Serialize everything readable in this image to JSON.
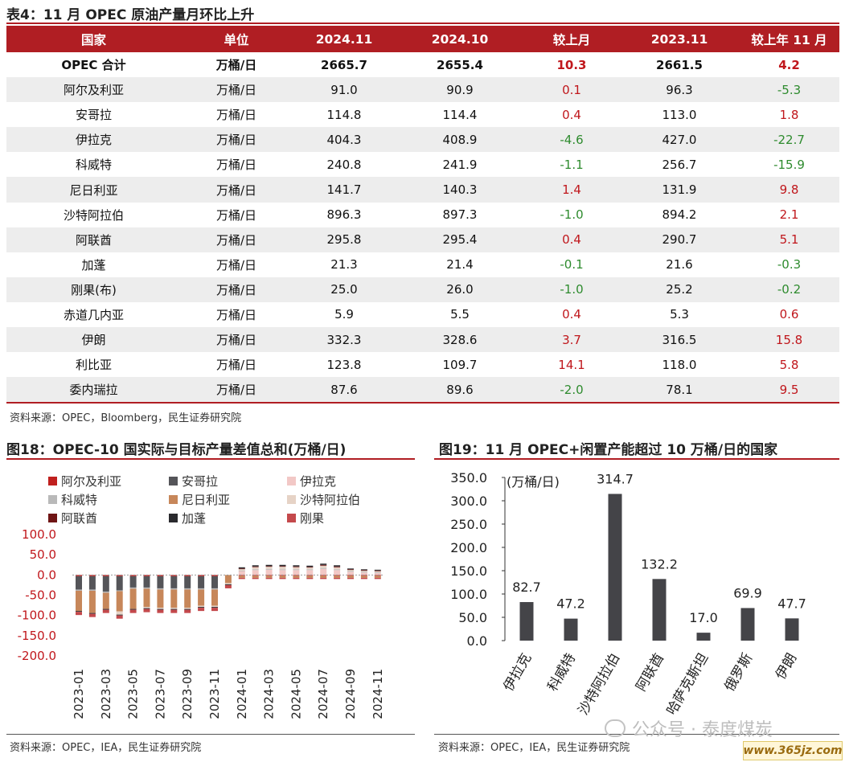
{
  "table": {
    "title": "表4：11 月 OPEC 原油产量月环比上升",
    "headers": [
      "国家",
      "单位",
      "2024.11",
      "2024.10",
      "较上月",
      "2023.11",
      "较上年 11 月"
    ],
    "rows": [
      {
        "country": "OPEC 合计",
        "unit": "万桶/日",
        "v2411": "2665.7",
        "v2410": "2655.4",
        "mom": "10.3",
        "v2311": "2661.5",
        "yoy": "4.2"
      },
      {
        "country": "阿尔及利亚",
        "unit": "万桶/日",
        "v2411": "91.0",
        "v2410": "90.9",
        "mom": "0.1",
        "v2311": "96.3",
        "yoy": "-5.3"
      },
      {
        "country": "安哥拉",
        "unit": "万桶/日",
        "v2411": "114.8",
        "v2410": "114.4",
        "mom": "0.4",
        "v2311": "113.0",
        "yoy": "1.8"
      },
      {
        "country": "伊拉克",
        "unit": "万桶/日",
        "v2411": "404.3",
        "v2410": "408.9",
        "mom": "-4.6",
        "v2311": "427.0",
        "yoy": "-22.7"
      },
      {
        "country": "科威特",
        "unit": "万桶/日",
        "v2411": "240.8",
        "v2410": "241.9",
        "mom": "-1.1",
        "v2311": "256.7",
        "yoy": "-15.9"
      },
      {
        "country": "尼日利亚",
        "unit": "万桶/日",
        "v2411": "141.7",
        "v2410": "140.3",
        "mom": "1.4",
        "v2311": "131.9",
        "yoy": "9.8"
      },
      {
        "country": "沙特阿拉伯",
        "unit": "万桶/日",
        "v2411": "896.3",
        "v2410": "897.3",
        "mom": "-1.0",
        "v2311": "894.2",
        "yoy": "2.1"
      },
      {
        "country": "阿联酋",
        "unit": "万桶/日",
        "v2411": "295.8",
        "v2410": "295.4",
        "mom": "0.4",
        "v2311": "290.7",
        "yoy": "5.1"
      },
      {
        "country": "加蓬",
        "unit": "万桶/日",
        "v2411": "21.3",
        "v2410": "21.4",
        "mom": "-0.1",
        "v2311": "21.6",
        "yoy": "-0.3"
      },
      {
        "country": "刚果(布)",
        "unit": "万桶/日",
        "v2411": "25.0",
        "v2410": "26.0",
        "mom": "-1.0",
        "v2311": "25.2",
        "yoy": "-0.2"
      },
      {
        "country": "赤道几内亚",
        "unit": "万桶/日",
        "v2411": "5.9",
        "v2410": "5.5",
        "mom": "0.4",
        "v2311": "5.3",
        "yoy": "0.6"
      },
      {
        "country": "伊朗",
        "unit": "万桶/日",
        "v2411": "332.3",
        "v2410": "328.6",
        "mom": "3.7",
        "v2311": "316.5",
        "yoy": "15.8"
      },
      {
        "country": "利比亚",
        "unit": "万桶/日",
        "v2411": "123.8",
        "v2410": "109.7",
        "mom": "14.1",
        "v2311": "118.0",
        "yoy": "5.8"
      },
      {
        "country": "委内瑞拉",
        "unit": "万桶/日",
        "v2411": "87.6",
        "v2410": "89.6",
        "mom": "-2.0",
        "v2311": "78.1",
        "yoy": "9.5"
      }
    ],
    "source": "资料来源：OPEC，Bloomberg，民生证券研究院",
    "colors": {
      "header_bg": "#b01e23",
      "positive": "#c0171c",
      "negative": "#2e8b2e"
    }
  },
  "figure18": {
    "title": "图18：OPEC-10 国实际与目标产量差值总和(万桶/日)",
    "source": "资料来源：OPEC，IEA，民生证券研究院"
  },
  "figure19": {
    "title": "图19：11 月 OPEC+闲置产能超过 10 万桶/日的国家",
    "source": "资料来源：OPEC，IEA，民生证券研究院"
  },
  "watermark": {
    "text": "公众号 · 泰度煤炭",
    "site": "www.365jz.com"
  },
  "chart_data": [
    {
      "type": "bar",
      "stacked": true,
      "categories": [
        "2023-01",
        "2023-02",
        "2023-03",
        "2023-04",
        "2023-05",
        "2023-06",
        "2023-07",
        "2023-08",
        "2023-09",
        "2023-10",
        "2023-11",
        "2023-12",
        "2024-01",
        "2024-02",
        "2024-03",
        "2024-04",
        "2024-05",
        "2024-06",
        "2024-07",
        "2024-08",
        "2024-09",
        "2024-10",
        "2024-11"
      ],
      "xtick_labels": [
        "2023-01",
        "2023-03",
        "2023-05",
        "2023-07",
        "2023-09",
        "2023-11",
        "2024-01",
        "2024-03",
        "2024-05",
        "2024-07",
        "2024-09",
        "2024-11"
      ],
      "ylim": [
        -200,
        100
      ],
      "yticks": [
        "100.0",
        "50.0",
        "0.0",
        "-50.0",
        "-100.0",
        "-150.0",
        "-200.0"
      ],
      "legend_position": "top",
      "series": [
        {
          "name": "阿尔及利亚",
          "color": "#c0201e",
          "values": [
            -3,
            -3,
            -3,
            -3,
            -3,
            -3,
            -3,
            -3,
            -3,
            -3,
            -3,
            0,
            -2,
            -2,
            -2,
            -2,
            -2,
            -2,
            -2,
            -2,
            -2,
            -2,
            -2
          ]
        },
        {
          "name": "安哥拉",
          "color": "#555559",
          "values": [
            -33,
            -33,
            -38,
            -35,
            -28,
            -28,
            -30,
            -30,
            -30,
            -30,
            -30,
            0,
            0,
            0,
            0,
            0,
            0,
            0,
            0,
            0,
            0,
            0,
            0
          ]
        },
        {
          "name": "伊拉克",
          "color": "#f2c8c6",
          "values": [
            0,
            0,
            0,
            0,
            0,
            0,
            0,
            0,
            0,
            0,
            0,
            0,
            10,
            12,
            13,
            12,
            12,
            12,
            15,
            12,
            8,
            6,
            5
          ]
        },
        {
          "name": "科威特",
          "color": "#b9b9b9",
          "values": [
            -3,
            -3,
            -3,
            -2,
            -3,
            -3,
            -3,
            -3,
            -3,
            -3,
            -3,
            0,
            1,
            2,
            2,
            2,
            2,
            2,
            2,
            2,
            2,
            2,
            2
          ]
        },
        {
          "name": "尼日利亚",
          "color": "#c7875a",
          "values": [
            -50,
            -55,
            -40,
            -50,
            -50,
            -45,
            -45,
            -45,
            -45,
            -40,
            -40,
            -20,
            -5,
            -5,
            -5,
            -5,
            -5,
            -5,
            -5,
            -5,
            -5,
            -5,
            -5
          ]
        },
        {
          "name": "沙特阿拉伯",
          "color": "#e6d3c6",
          "values": [
            0,
            0,
            0,
            -8,
            0,
            -3,
            -3,
            -3,
            -3,
            -3,
            -3,
            -3,
            4,
            6,
            6,
            7,
            6,
            5,
            6,
            5,
            3,
            3,
            3
          ]
        },
        {
          "name": "阿联酋",
          "color": "#6f1515",
          "values": [
            0,
            0,
            0,
            0,
            0,
            0,
            0,
            0,
            0,
            0,
            0,
            0,
            1,
            1,
            1,
            1,
            1,
            1,
            2,
            2,
            1,
            1,
            1
          ]
        },
        {
          "name": "加蓬",
          "color": "#2a2a2e",
          "values": [
            -2,
            -2,
            -2,
            -2,
            -2,
            -2,
            -2,
            -2,
            -2,
            -2,
            -2,
            -2,
            3,
            3,
            3,
            3,
            3,
            3,
            3,
            3,
            2,
            2,
            2
          ]
        },
        {
          "name": "刚果",
          "color": "#c4494c",
          "values": [
            -8,
            -8,
            -8,
            -8,
            -8,
            -8,
            -8,
            -8,
            -8,
            -8,
            -8,
            -8,
            -3,
            -3,
            -3,
            -3,
            -3,
            -3,
            -3,
            -3,
            -3,
            -3,
            -3
          ]
        }
      ]
    },
    {
      "type": "bar",
      "categories": [
        "伊拉克",
        "科威特",
        "沙特阿拉伯",
        "阿联酋",
        "哈萨克斯坦",
        "俄罗斯",
        "伊朗"
      ],
      "values": [
        82.7,
        47.2,
        314.7,
        132.2,
        17.0,
        69.9,
        47.7
      ],
      "value_labels": [
        "82.7",
        "47.2",
        "314.7",
        "132.2",
        "17.0",
        "69.9",
        "47.7"
      ],
      "ylabel": "(万桶/日)",
      "ylim": [
        0,
        350
      ],
      "yticks": [
        "350.0",
        "300.0",
        "250.0",
        "200.0",
        "150.0",
        "100.0",
        "50.0",
        "0.0"
      ],
      "color": "#444448"
    }
  ]
}
